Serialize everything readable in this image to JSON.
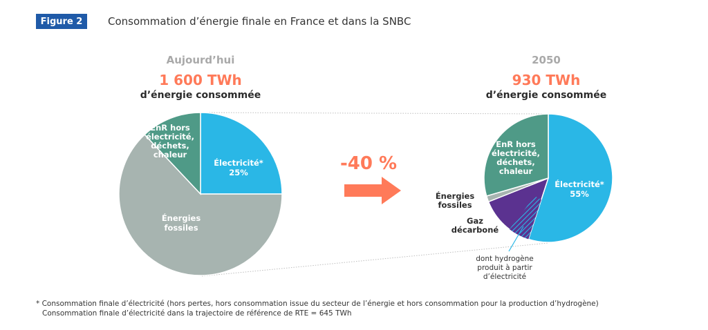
{
  "figure": {
    "badge": "Figure 2",
    "title": "Consommation d’énergie finale en France et dans la SNBC"
  },
  "colors": {
    "electricite": "#2ab7e6",
    "enr": "#4f9a87",
    "fossiles": "#a7b4b0",
    "gaz": "#5b3290",
    "arrow": "#ff7a59",
    "badge": "#1f5aa8"
  },
  "change_label": "-40 %",
  "chart_data": [
    {
      "type": "pie",
      "period": "Aujourd’hui",
      "total": "1 600 TWh",
      "total_sub": "d’énergie consommée",
      "slices": [
        {
          "name": "Électricité*",
          "pct_label": "25%",
          "value": 25,
          "color": "#2ab7e6"
        },
        {
          "name": "Énergies fossiles",
          "pct_label": "",
          "value": 63,
          "color": "#a7b4b0"
        },
        {
          "name": "EnR hors électricité, déchets, chaleur",
          "pct_label": "",
          "value": 12,
          "color": "#4f9a87"
        }
      ]
    },
    {
      "type": "pie",
      "period": "2050",
      "total": "930 TWh",
      "total_sub": "d’énergie consommée",
      "slices": [
        {
          "name": "Électricité*",
          "pct_label": "55%",
          "value": 55,
          "color": "#2ab7e6"
        },
        {
          "name": "Gaz décarboné",
          "pct_label": "",
          "value": 14,
          "color": "#5b3290"
        },
        {
          "name": "Énergies fossiles",
          "pct_label": "",
          "value": 1.5,
          "color": "#a7b4b0"
        },
        {
          "name": "EnR hors électricité, déchets, chaleur",
          "pct_label": "",
          "value": 29.5,
          "color": "#4f9a87"
        }
      ],
      "hydrogen_note": "dont hydrogène produit à partir d’électricité"
    }
  ],
  "footnote": {
    "line1": "* Consommation finale d’électricité (hors pertes, hors consommation issue du secteur de l’énergie et hors consommation pour la production d’hydrogène)",
    "line2": "Consommation finale d’électricité dans la trajectoire de référence de RTE = 645 TWh"
  }
}
